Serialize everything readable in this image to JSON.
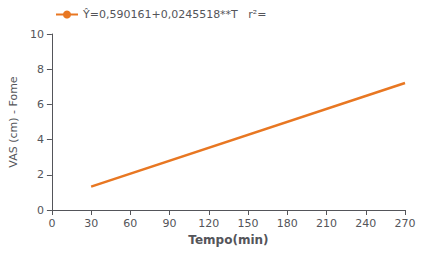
{
  "chart_data": {
    "type": "line",
    "x": [
      30,
      270
    ],
    "series": [
      {
        "name": "Ŷ=0,590161+0,0245518**T   r²=",
        "color": "#E87722",
        "values": [
          1.326715,
          7.219147
        ]
      }
    ],
    "xlabel": "Tempo(min)",
    "ylabel": "VAS (cm) - Fome",
    "xlim": [
      0,
      270
    ],
    "ylim": [
      0,
      10
    ],
    "xticks": [
      0,
      30,
      60,
      90,
      120,
      150,
      180,
      210,
      240,
      270
    ],
    "yticks": [
      0,
      2,
      4,
      6,
      8,
      10
    ],
    "grid": false,
    "legend": "upper left"
  }
}
